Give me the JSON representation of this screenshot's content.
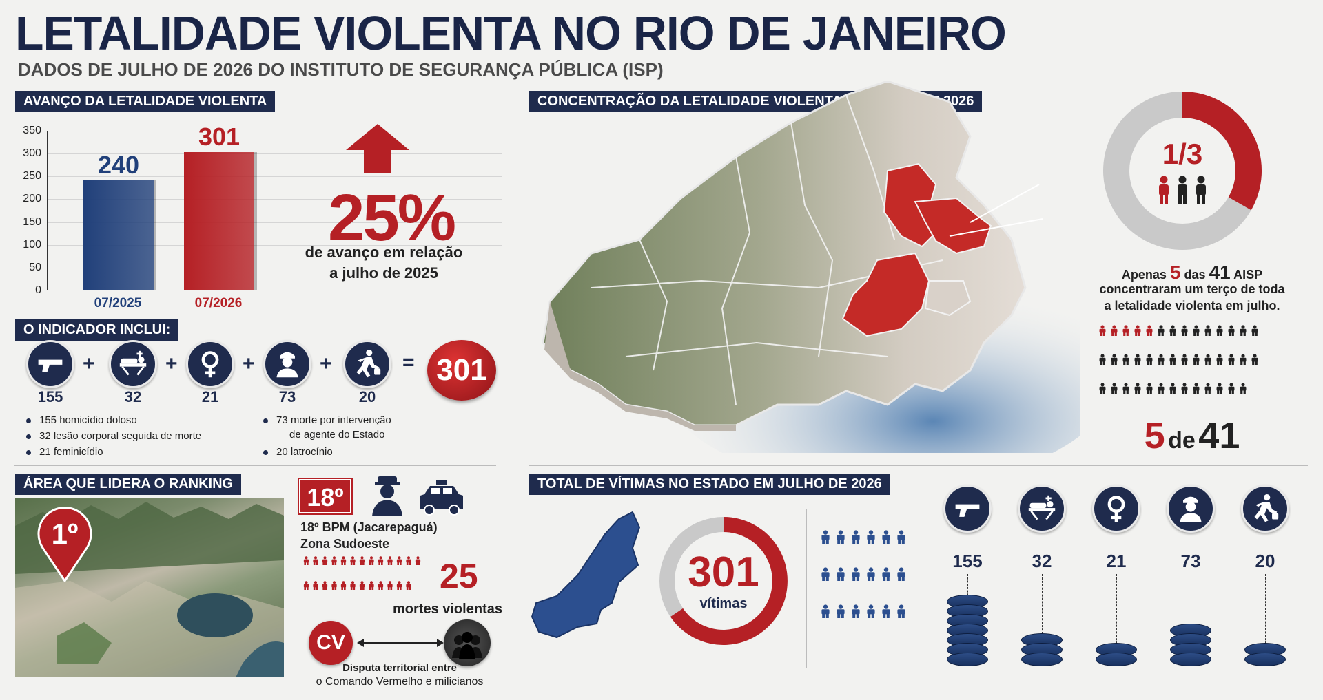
{
  "header": {
    "title": "LETALIDADE VIOLENTA NO RIO DE JANEIRO",
    "subtitle": "DADOS DE JULHO DE 2026 DO INSTITUTO DE SEGURANÇA PÚBLICA (ISP)"
  },
  "colors": {
    "navy": "#1f2b4d",
    "red": "#b52025",
    "gray": "#c9c9c9"
  },
  "chart_section": {
    "heading": "AVANÇO DA LETALIDADE VIOLENTA",
    "big_percent": "25%",
    "percent_line1": "de avanço em relação",
    "percent_line2": "a julho de 2025"
  },
  "chart_data": {
    "type": "bar",
    "categories": [
      "07/2025",
      "07/2026"
    ],
    "values": [
      240,
      301
    ],
    "value_labels": [
      "240",
      "301"
    ],
    "ylim": [
      0,
      350
    ],
    "yticks": [
      "350",
      "300",
      "250",
      "200",
      "150",
      "100",
      "50",
      "0"
    ],
    "grid": true,
    "colors": [
      "#21407a",
      "#b52025"
    ]
  },
  "indicator": {
    "heading": "O INDICADOR INCLUI:",
    "items": [
      {
        "icon": "pistol-icon",
        "value": "155"
      },
      {
        "icon": "stretcher-icon",
        "value": "32"
      },
      {
        "icon": "female-symbol-icon",
        "value": "21"
      },
      {
        "icon": "police-officer-icon",
        "value": "73"
      },
      {
        "icon": "running-thief-icon",
        "value": "20"
      }
    ],
    "plus": "+",
    "equals": "=",
    "total": "301",
    "bullets_left": [
      "155 homicídio doloso",
      "32 lesão corporal seguida de morte",
      "21 feminicídio"
    ],
    "bullets_right_1a": "73 morte por intervenção",
    "bullets_right_1b": "de agente do Estado",
    "bullets_right_2": "20 latrocínio"
  },
  "ranking": {
    "heading": "ÁREA QUE LIDERA O RANKING",
    "pin_label": "1º",
    "badge": "18º",
    "line1": "18º BPM (Jacarepaguá)",
    "line2": "Zona Sudoeste",
    "deaths": "25",
    "deaths_label": "mortes violentas",
    "cv_label": "CV",
    "dispute_line1": "Disputa territorial entre",
    "dispute_line2": "o Comando Vermelho e milicianos"
  },
  "concentration": {
    "heading": "CONCENTRAÇÃO DA LETALIDADE VIOLENTA EM JULHO DE 2026",
    "fraction": "1/3",
    "donut_fraction": 0.333,
    "text_pre": "Apenas",
    "text_n1": "5",
    "text_mid": "das",
    "text_n2": "41",
    "text_post": "AISP",
    "text_line2": "concentraram um terço de toda",
    "text_line3": "a letalidade violenta em julho.",
    "highlighted": 5,
    "total_aisp": 41,
    "footer_n1": "5",
    "footer_mid": "de",
    "footer_n2": "41"
  },
  "victims": {
    "heading": "TOTAL DE VÍTIMAS NO ESTADO EM JULHO DE 2026",
    "total": "301",
    "total_label": "vítimas",
    "stacks": [
      {
        "icon": "pistol-icon",
        "value": "155",
        "discs": 7
      },
      {
        "icon": "stretcher-icon",
        "value": "32",
        "discs": 3
      },
      {
        "icon": "female-symbol-icon",
        "value": "21",
        "discs": 2
      },
      {
        "icon": "police-officer-icon",
        "value": "73",
        "discs": 4
      },
      {
        "icon": "running-thief-icon",
        "value": "20",
        "discs": 2
      }
    ]
  }
}
